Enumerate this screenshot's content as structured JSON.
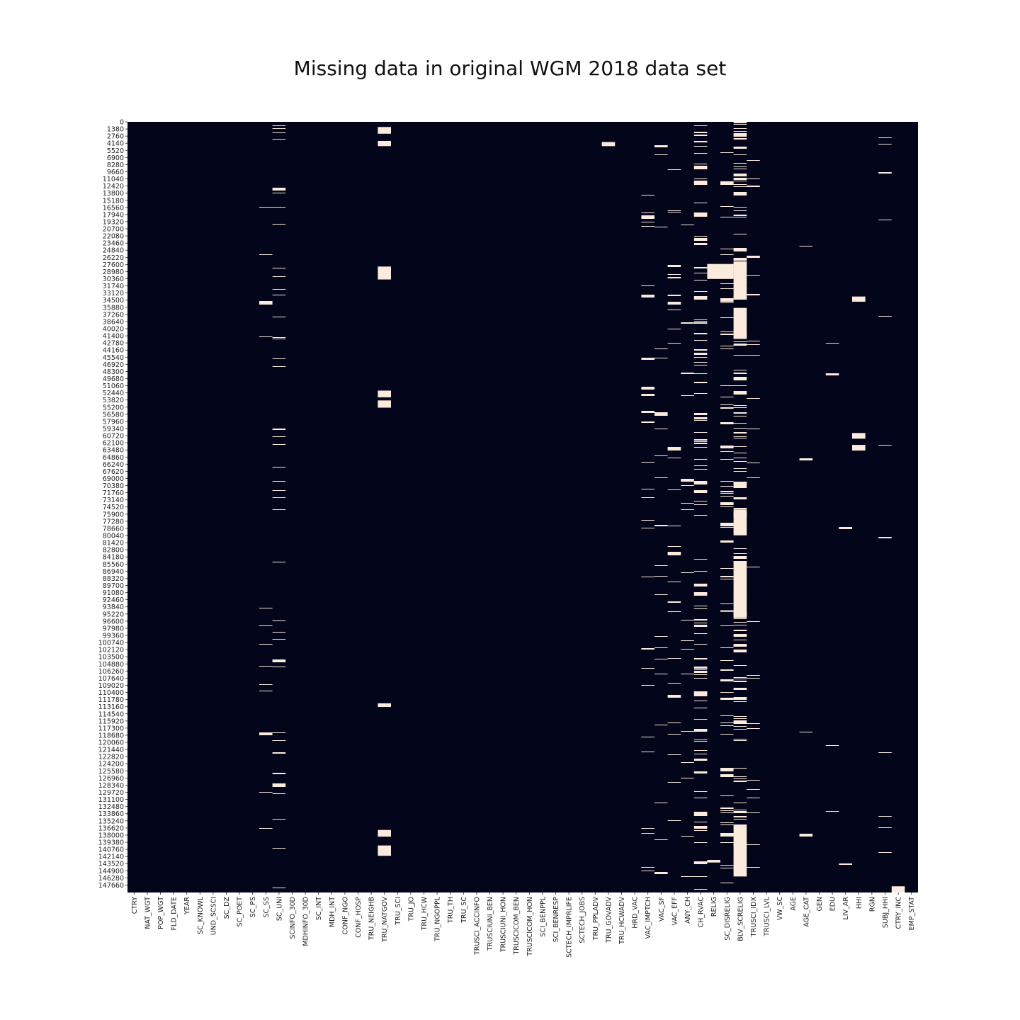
{
  "chart_data": {
    "type": "heatmap",
    "title": "Missing data in original WGM 2018 data set",
    "xlabel": "",
    "ylabel": "",
    "colors": {
      "present": "#03051A",
      "missing": "#FAEBDD"
    },
    "x_tick_labels": [
      "CTRY",
      "NAT_WGT",
      "POP_WGT",
      "FLD_DATE",
      "YEAR",
      "SC_KNOWL",
      "UND_SCSCI",
      "SC_DZ",
      "SC_POET",
      "SC_PS",
      "SC_SS",
      "SC_UNI",
      "SCINFO_30D",
      "MDHINFO_30D",
      "SC_INT",
      "MDH_INT",
      "CONF_NGO",
      "CONF_HOSP",
      "TRU_NEIGHB",
      "TRU_NATGOV",
      "TRU_SCI",
      "TRU_JO",
      "TRU_HCW",
      "TRU_NGOPPL",
      "TRU_TH",
      "TRU_SC",
      "TRUSCI_ACCINFO",
      "TRUSCIUNI_BEN",
      "TRUSCIUNI_HON",
      "TRUSCICOM_BEN",
      "TRUSCICOM_HON",
      "SCI_BENPPL",
      "SCI_BENRESP",
      "SCTECH_IMPRLIFE",
      "SCTECH_JOBS",
      "TRU_PPLADV",
      "TRU_GOVADV",
      "TRU_HCWADV",
      "HRD_VAC",
      "VAC_IMPTCH",
      "VAC_SF",
      "VAC_EFF",
      "ANY_CH",
      "CH_RVAC",
      "RELIG",
      "SC_DISRELIG",
      "BLV_SCRELIG",
      "TRUSCI_IDX",
      "TRUSCI_LVL",
      "VW_SC",
      "AGE",
      "AGE_CAT",
      "GEN",
      "EDU",
      "LIV_AR",
      "HHI",
      "RGN",
      "SUBJ_HHI",
      "CTRY_INC",
      "EMP_STAT"
    ],
    "y_tick_labels": [
      "0",
      "1380",
      "2760",
      "4140",
      "5520",
      "6900",
      "8280",
      "9660",
      "11040",
      "12420",
      "13800",
      "15180",
      "16560",
      "17940",
      "19320",
      "20700",
      "22080",
      "23460",
      "24840",
      "26220",
      "27600",
      "28980",
      "30360",
      "31740",
      "33120",
      "34500",
      "35880",
      "37260",
      "38640",
      "40020",
      "41400",
      "42780",
      "44160",
      "45540",
      "46920",
      "48300",
      "49680",
      "51060",
      "52440",
      "53820",
      "55200",
      "56580",
      "57960",
      "59340",
      "60720",
      "62100",
      "63480",
      "64860",
      "66240",
      "67620",
      "69000",
      "70380",
      "71760",
      "73140",
      "74520",
      "75900",
      "77280",
      "78660",
      "80040",
      "81420",
      "82800",
      "84180",
      "85560",
      "86940",
      "88320",
      "89700",
      "91080",
      "92460",
      "93840",
      "95220",
      "96600",
      "97980",
      "99360",
      "100740",
      "102120",
      "103500",
      "104880",
      "106260",
      "107640",
      "109020",
      "110400",
      "111780",
      "113160",
      "114540",
      "115920",
      "117300",
      "118680",
      "120060",
      "121440",
      "122820",
      "124200",
      "125580",
      "126960",
      "128340",
      "129720",
      "131100",
      "132480",
      "133860",
      "135240",
      "136620",
      "138000",
      "139380",
      "140760",
      "142140",
      "143520",
      "144900",
      "146280",
      "147660"
    ],
    "y_range": [
      0,
      149100
    ],
    "missing_blocks": [
      {
        "column": "TRU_NATGOV",
        "rows": [
          [
            1000,
            2300
          ],
          [
            3700,
            4700
          ],
          [
            28000,
            30500
          ],
          [
            52000,
            53300
          ],
          [
            53900,
            55300
          ],
          [
            112500,
            113200
          ],
          [
            137000,
            138300
          ],
          [
            140000,
            142000
          ]
        ]
      },
      {
        "column": "TRU_GOVADV",
        "rows": [
          [
            3900,
            4700
          ]
        ]
      },
      {
        "column": "RELIG",
        "rows": [
          [
            27500,
            30400
          ],
          [
            142800,
            143300
          ]
        ]
      },
      {
        "column": "SC_DISRELIG",
        "rows": [
          [
            27500,
            30400
          ]
        ]
      },
      {
        "column": "BLV_SCRELIG",
        "rows": [
          [
            27000,
            34000
          ],
          [
            36000,
            42000
          ],
          [
            75000,
            80000
          ],
          [
            85000,
            88000
          ],
          [
            88500,
            96000
          ],
          [
            136000,
            146000
          ]
        ]
      },
      {
        "column": "HHI",
        "rows": [
          [
            33800,
            34800
          ],
          [
            60200,
            61300
          ],
          [
            62500,
            63600
          ]
        ]
      },
      {
        "column": "CTRY_INC",
        "rows": [
          [
            147900,
            149100
          ]
        ]
      }
    ],
    "missing_lines": [
      {
        "column": "SC_SS",
        "density": 0.06
      },
      {
        "column": "SC_UNI",
        "density": 0.2
      },
      {
        "column": "VAC_IMPTCH",
        "density": 0.13
      },
      {
        "column": "VAC_SF",
        "density": 0.1
      },
      {
        "column": "VAC_EFF",
        "density": 0.13
      },
      {
        "column": "ANY_CH",
        "density": 0.08
      },
      {
        "column": "CH_RVAC",
        "density": 0.5
      },
      {
        "column": "SC_DISRELIG",
        "density": 0.3
      },
      {
        "column": "BLV_SCRELIG",
        "density": 0.65
      },
      {
        "column": "TRUSCI_IDX",
        "density": 0.12
      },
      {
        "column": "AGE_CAT",
        "density": 0.02
      },
      {
        "column": "EDU",
        "density": 0.02
      },
      {
        "column": "LIV_AR",
        "density": 0.01
      },
      {
        "column": "SUBJ_HHI",
        "density": 0.05
      }
    ]
  }
}
